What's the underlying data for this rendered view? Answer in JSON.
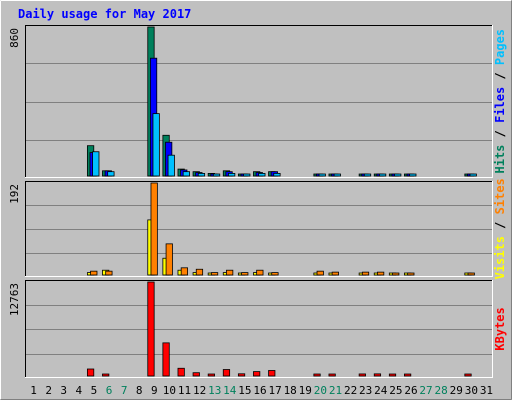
{
  "title": "Daily usage for May 2017",
  "colors": {
    "background": "#c0c0c0",
    "plot_bg": "#c0c0c0",
    "grid": "#808080",
    "border_light": "#ffffff",
    "border_dark": "#808080",
    "title": "#0000ff",
    "label": "#000000",
    "weekend_label": "#00805c",
    "hits": "#00805c",
    "files": "#0000ff",
    "pages": "#00c0ff",
    "visits": "#ffff00",
    "sites": "#ff8000",
    "kbytes": "#ff0000"
  },
  "legends": {
    "top": [
      {
        "text": "Hits",
        "color": "#00805c"
      },
      {
        "text": " / ",
        "color": "#000000"
      },
      {
        "text": "Files",
        "color": "#0000ff"
      },
      {
        "text": " / ",
        "color": "#000000"
      },
      {
        "text": "Pages",
        "color": "#00c0ff"
      }
    ],
    "middle": [
      {
        "text": "Visits",
        "color": "#ffff00"
      },
      {
        "text": " / ",
        "color": "#000000"
      },
      {
        "text": "Sites",
        "color": "#ff8000"
      }
    ],
    "bottom": [
      {
        "text": "KBytes",
        "color": "#ff0000"
      }
    ]
  },
  "chart_data": {
    "type": "bar",
    "title": "Daily usage for May 2017",
    "days": [
      "1",
      "2",
      "3",
      "4",
      "5",
      "6",
      "7",
      "8",
      "9",
      "10",
      "11",
      "12",
      "13",
      "14",
      "15",
      "16",
      "17",
      "18",
      "19",
      "20",
      "21",
      "22",
      "23",
      "24",
      "25",
      "26",
      "27",
      "28",
      "29",
      "30",
      "31"
    ],
    "weekend_days": [
      "6",
      "7",
      "13",
      "14",
      "20",
      "21",
      "27",
      "28"
    ],
    "panels": [
      {
        "id": "top",
        "max_label": "860",
        "ymax": 860,
        "series": [
          {
            "name": "Hits",
            "color": "#00805c",
            "values": [
              0,
              0,
              0,
              0,
              175,
              30,
              0,
              0,
              860,
              235,
              40,
              25,
              15,
              30,
              10,
              25,
              25,
              0,
              0,
              8,
              8,
              0,
              8,
              8,
              8,
              8,
              0,
              0,
              0,
              8,
              0
            ]
          },
          {
            "name": "Files",
            "color": "#0000ff",
            "values": [
              0,
              0,
              0,
              0,
              135,
              30,
              0,
              0,
              680,
              195,
              35,
              20,
              12,
              25,
              8,
              20,
              25,
              0,
              0,
              6,
              6,
              0,
              6,
              6,
              6,
              6,
              0,
              0,
              0,
              6,
              0
            ]
          },
          {
            "name": "Pages",
            "color": "#00c0ff",
            "values": [
              0,
              0,
              0,
              0,
              140,
              25,
              0,
              0,
              360,
              120,
              25,
              15,
              8,
              15,
              5,
              15,
              15,
              0,
              0,
              4,
              4,
              0,
              4,
              4,
              4,
              4,
              0,
              0,
              0,
              4,
              0
            ]
          }
        ]
      },
      {
        "id": "middle",
        "max_label": "192",
        "ymax": 192,
        "series": [
          {
            "name": "Visits",
            "color": "#ffff00",
            "values": [
              0,
              0,
              0,
              0,
              5,
              10,
              0,
              0,
              115,
              35,
              10,
              5,
              2,
              5,
              2,
              5,
              2,
              0,
              0,
              2,
              2,
              0,
              2,
              2,
              2,
              2,
              0,
              0,
              0,
              2,
              0
            ]
          },
          {
            "name": "Sites",
            "color": "#ff8000",
            "values": [
              0,
              0,
              0,
              0,
              8,
              8,
              0,
              0,
              192,
              65,
              15,
              12,
              5,
              10,
              5,
              10,
              5,
              0,
              0,
              8,
              6,
              0,
              6,
              6,
              4,
              4,
              0,
              0,
              0,
              4,
              0
            ]
          }
        ]
      },
      {
        "id": "bottom",
        "max_label": "12763",
        "ymax": 12763,
        "series": [
          {
            "name": "KBytes",
            "color": "#ff0000",
            "values": [
              0,
              0,
              0,
              0,
              950,
              200,
              0,
              0,
              12763,
              4500,
              1050,
              450,
              180,
              880,
              300,
              600,
              750,
              0,
              0,
              120,
              250,
              0,
              280,
              290,
              180,
              150,
              0,
              0,
              0,
              150,
              0
            ]
          }
        ]
      }
    ]
  }
}
